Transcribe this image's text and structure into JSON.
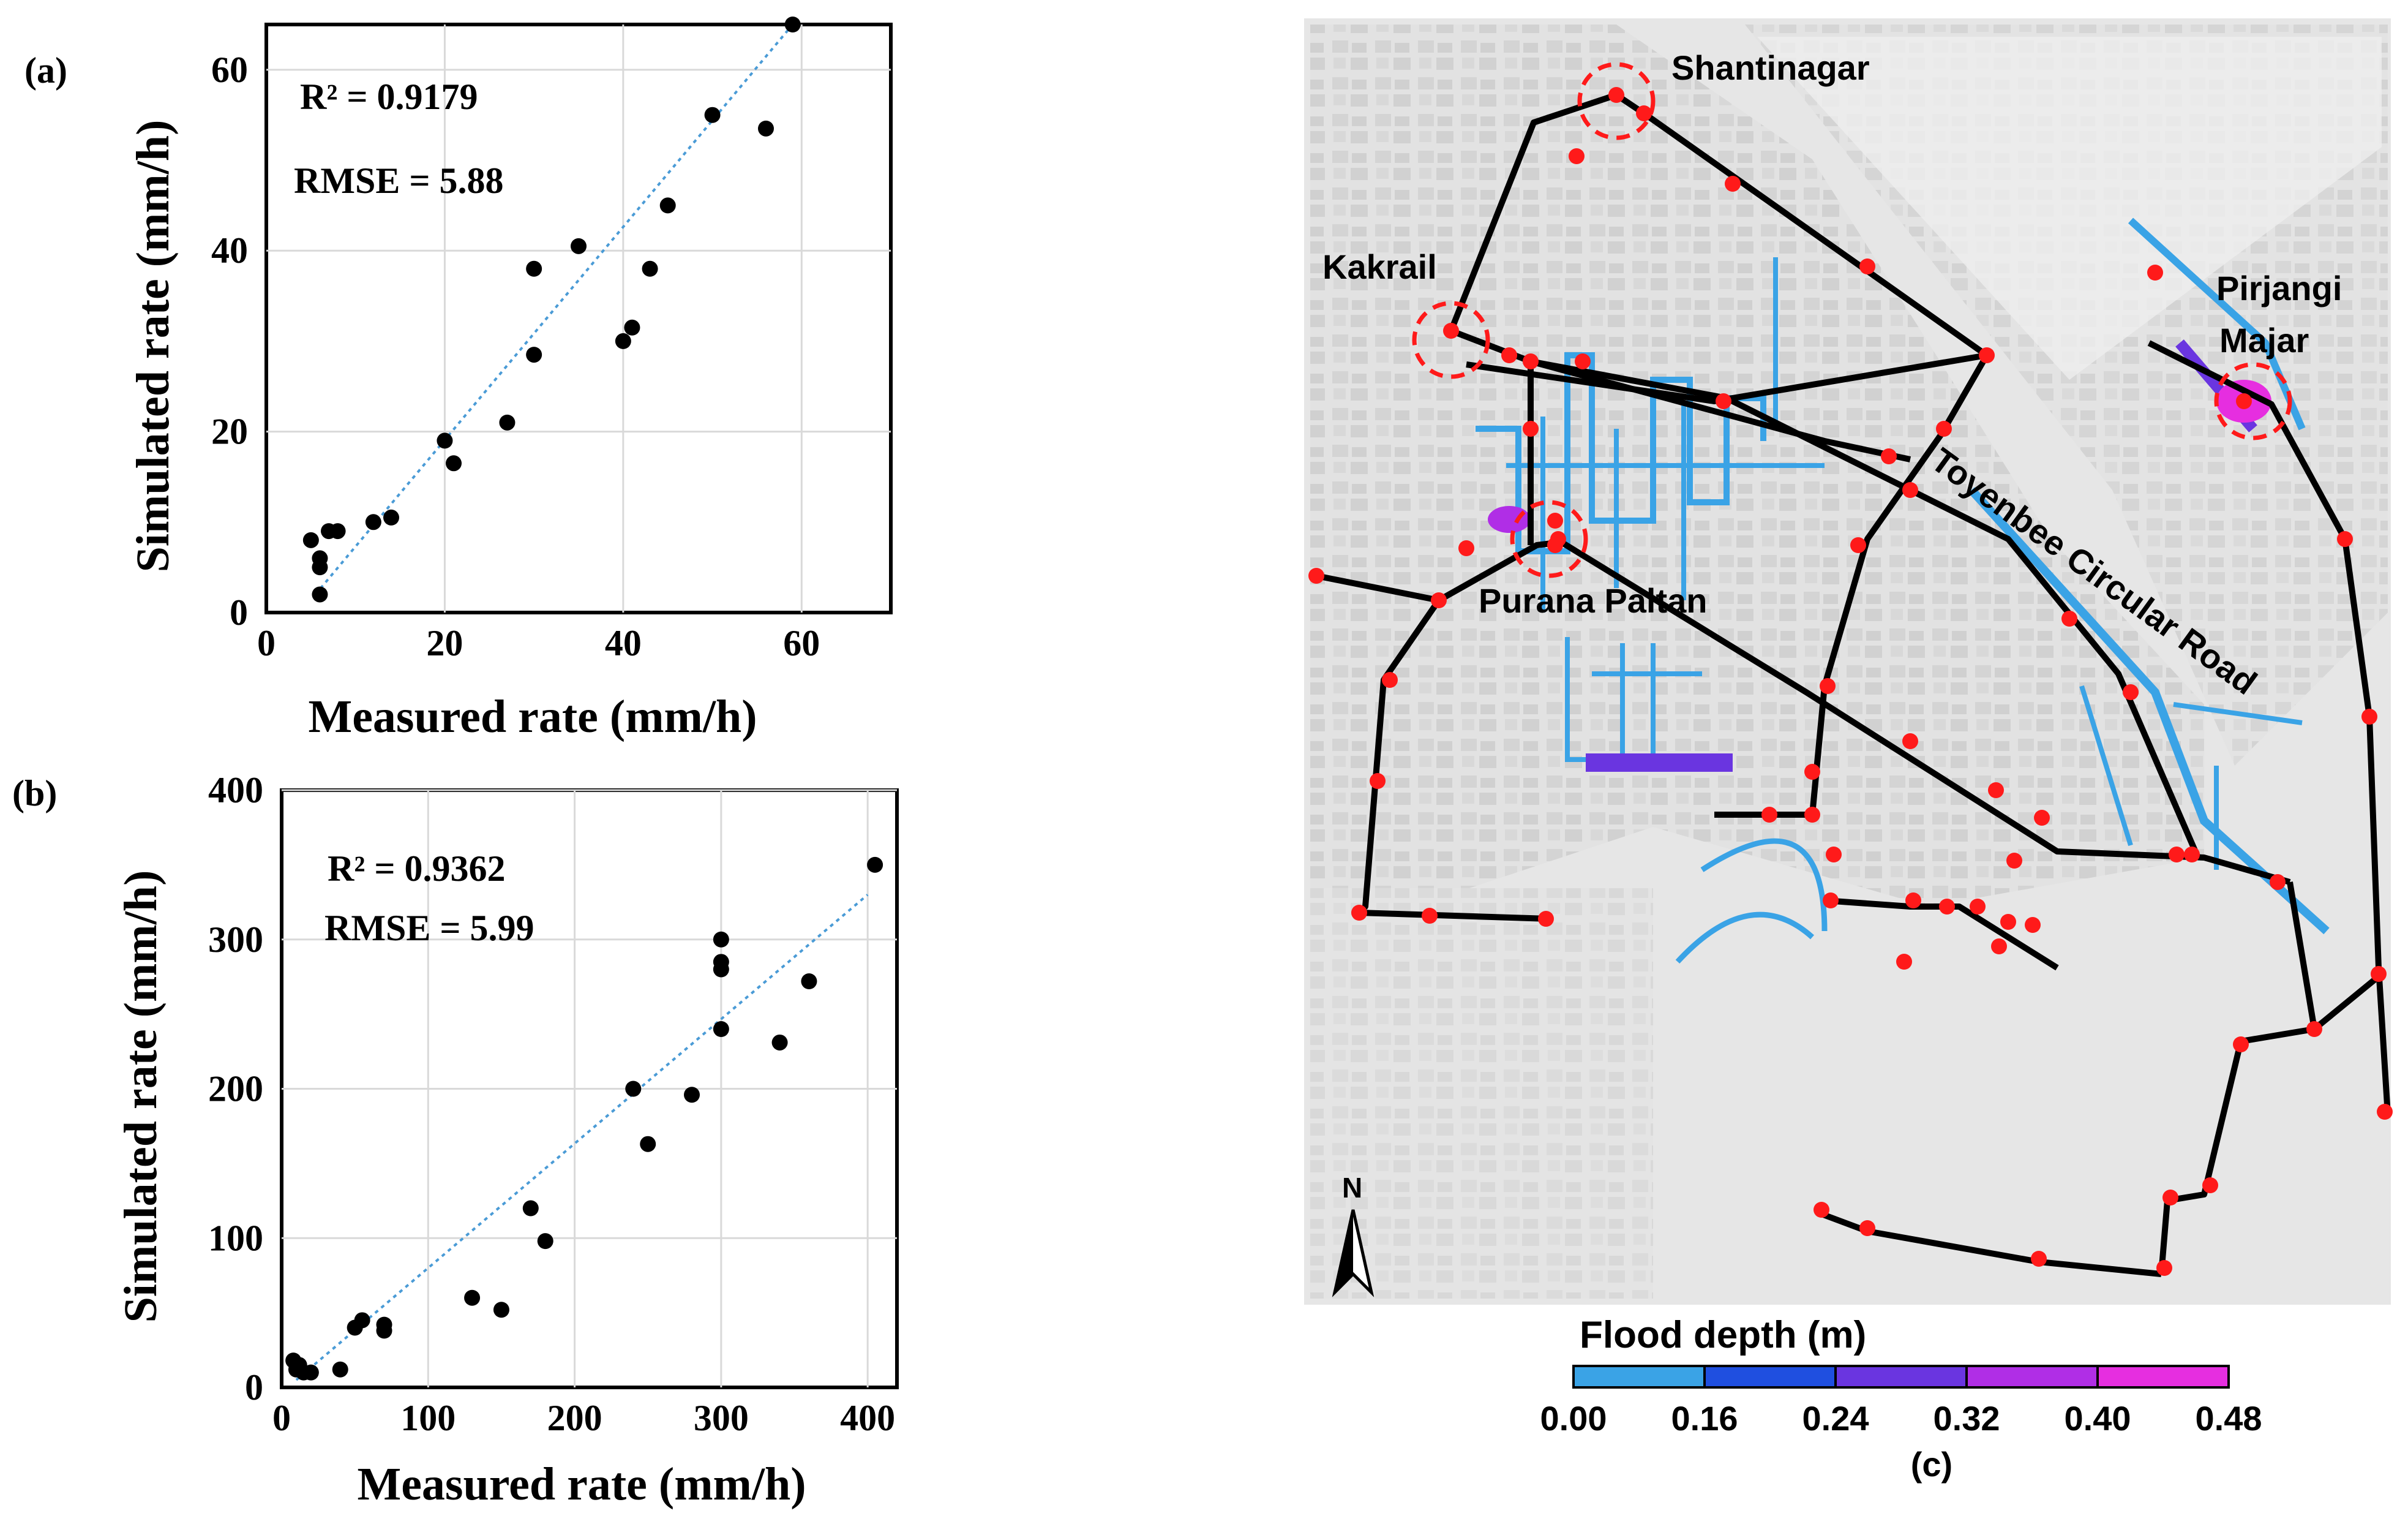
{
  "chart_data": [
    {
      "panel": "(a)",
      "type": "scatter",
      "xlabel": "Measured rate (mm/h)",
      "ylabel": "Simulated rate (mm/h)",
      "xlim": [
        0,
        70
      ],
      "ylim": [
        0,
        65
      ],
      "xticks": [
        0,
        20,
        40,
        60
      ],
      "yticks": [
        0,
        20,
        40,
        60
      ],
      "r2": "R² = 0.9179",
      "rmse": "RMSE = 5.88",
      "trendline": [
        [
          5.5,
          2
        ],
        [
          59,
          65
        ]
      ],
      "points": [
        [
          5,
          8
        ],
        [
          6,
          6
        ],
        [
          6,
          5
        ],
        [
          6,
          2
        ],
        [
          7,
          9
        ],
        [
          8,
          9
        ],
        [
          12,
          10
        ],
        [
          14,
          10.5
        ],
        [
          20,
          19
        ],
        [
          21,
          16.5
        ],
        [
          27,
          21
        ],
        [
          30,
          38
        ],
        [
          30,
          28.5
        ],
        [
          35,
          40.5
        ],
        [
          40,
          30
        ],
        [
          41,
          31.5
        ],
        [
          43,
          38
        ],
        [
          45,
          45
        ],
        [
          50,
          55
        ],
        [
          56,
          53.5
        ],
        [
          59,
          65
        ]
      ]
    },
    {
      "panel": "(b)",
      "type": "scatter",
      "xlabel": "Measured rate (mm/h)",
      "ylabel": "Simulated rate (mm/h)",
      "xlim": [
        0,
        420
      ],
      "ylim": [
        0,
        400
      ],
      "xticks": [
        0,
        100,
        200,
        300,
        400
      ],
      "yticks": [
        0,
        100,
        200,
        300,
        400
      ],
      "r2": "R² = 0.9362",
      "rmse": "RMSE = 5.99",
      "trendline": [
        [
          10,
          5
        ],
        [
          400,
          330
        ]
      ],
      "points": [
        [
          8,
          18
        ],
        [
          10,
          12
        ],
        [
          12,
          15
        ],
        [
          15,
          10
        ],
        [
          20,
          10
        ],
        [
          40,
          12
        ],
        [
          50,
          40
        ],
        [
          55,
          45
        ],
        [
          70,
          38
        ],
        [
          70,
          42
        ],
        [
          130,
          60
        ],
        [
          150,
          52
        ],
        [
          170,
          120
        ],
        [
          180,
          98
        ],
        [
          240,
          200
        ],
        [
          250,
          163
        ],
        [
          280,
          196
        ],
        [
          300,
          300
        ],
        [
          300,
          285
        ],
        [
          300,
          280
        ],
        [
          300,
          240
        ],
        [
          340,
          231
        ],
        [
          360,
          272
        ],
        [
          405,
          350
        ]
      ]
    }
  ],
  "map": {
    "panel": "(c)",
    "locations": [
      "Shantinagar",
      "Kakrail",
      "Pirjangi",
      "Majar",
      "Purana Paltan",
      "Toyenbee Circular Road"
    ],
    "north_label": "N",
    "legend_title": "Flood depth (m)",
    "legend_ticks": [
      "0.00",
      "0.16",
      "0.24",
      "0.32",
      "0.40",
      "0.48"
    ],
    "legend_colors": [
      "#3aa3e6",
      "#1f4fe0",
      "#6a35e0",
      "#b02ee6",
      "#e62ee0"
    ]
  }
}
